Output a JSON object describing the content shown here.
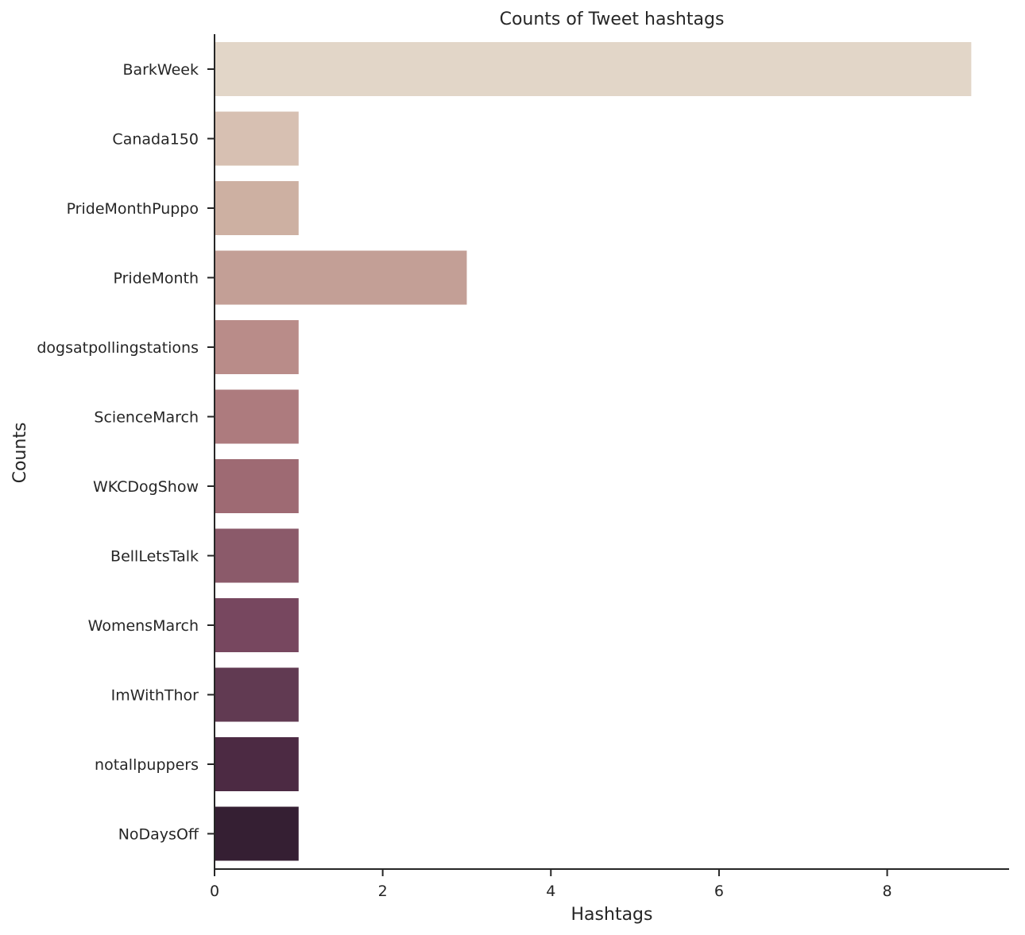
{
  "chart_data": {
    "type": "bar",
    "orientation": "horizontal",
    "title": "Counts of Tweet hashtags",
    "xlabel": "Hashtags",
    "ylabel": "Counts",
    "xlim": [
      0,
      9.45
    ],
    "xticks": [
      0,
      2,
      4,
      6,
      8
    ],
    "grid": false,
    "categories": [
      "BarkWeek",
      "Canada150",
      "PrideMonthPuppo",
      "PrideMonth",
      "dogsatpollingstations",
      "ScienceMarch",
      "WKCDogShow",
      "BellLetsTalk",
      "WomensMarch",
      "ImWithThor",
      "notallpuppers",
      "NoDaysOff"
    ],
    "values": [
      9,
      1,
      1,
      3,
      1,
      1,
      1,
      1,
      1,
      1,
      1,
      1
    ],
    "colors": [
      "#e2d6c8",
      "#d7c0b2",
      "#cdb0a2",
      "#c39f96",
      "#b98c89",
      "#ad7b7e",
      "#9e6a73",
      "#8b5a6a",
      "#77475f",
      "#613a52",
      "#4c2a43",
      "#351f33"
    ]
  }
}
